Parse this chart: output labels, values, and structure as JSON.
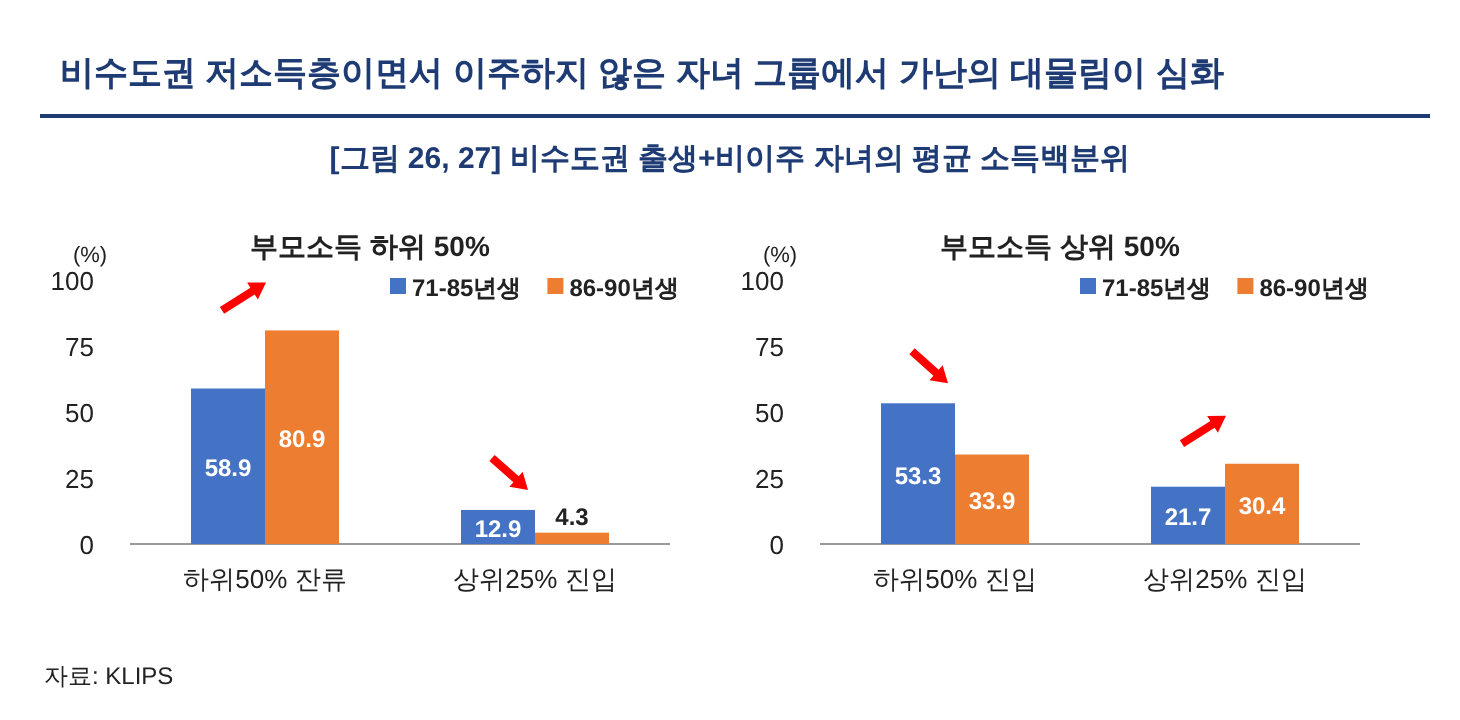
{
  "chart_data": [
    {
      "type": "bar",
      "title": "부모소득 하위 50%",
      "ylabel": "(%)",
      "categories": [
        "하위50% 잔류",
        "상위25% 진입"
      ],
      "series": [
        {
          "name": "71-85년생",
          "color": "#4472c4",
          "values": [
            58.9,
            12.9
          ]
        },
        {
          "name": "86-90년생",
          "color": "#ed7d31",
          "values": [
            80.9,
            4.3
          ]
        }
      ],
      "ylim": [
        0,
        100
      ],
      "yticks": [
        0,
        25,
        50,
        75,
        100
      ],
      "data_labels": true,
      "legend": "top right",
      "annotations": [
        "비수도권 저소득층이면서 이주하지 않은 자녀 그룹에서 가난의 대물림이 심화",
        "[그림 26, 27] 비수도권 출생+비이주 자녀의 평균 소득백분위",
        "자료: KLIPS"
      ]
    },
    {
      "type": "bar",
      "title": "부모소득 상위 50%",
      "ylabel": "(%)",
      "categories": [
        "하위50% 진입",
        "상위25% 진입"
      ],
      "series": [
        {
          "name": "71-85년생",
          "color": "#4472c4",
          "values": [
            53.3,
            21.7
          ]
        },
        {
          "name": "86-90년생",
          "color": "#ed7d31",
          "values": [
            33.9,
            30.4
          ]
        }
      ],
      "ylim": [
        0,
        100
      ],
      "yticks": [
        0,
        25,
        50,
        75,
        100
      ],
      "data_labels": true,
      "legend": "top right"
    }
  ]
}
